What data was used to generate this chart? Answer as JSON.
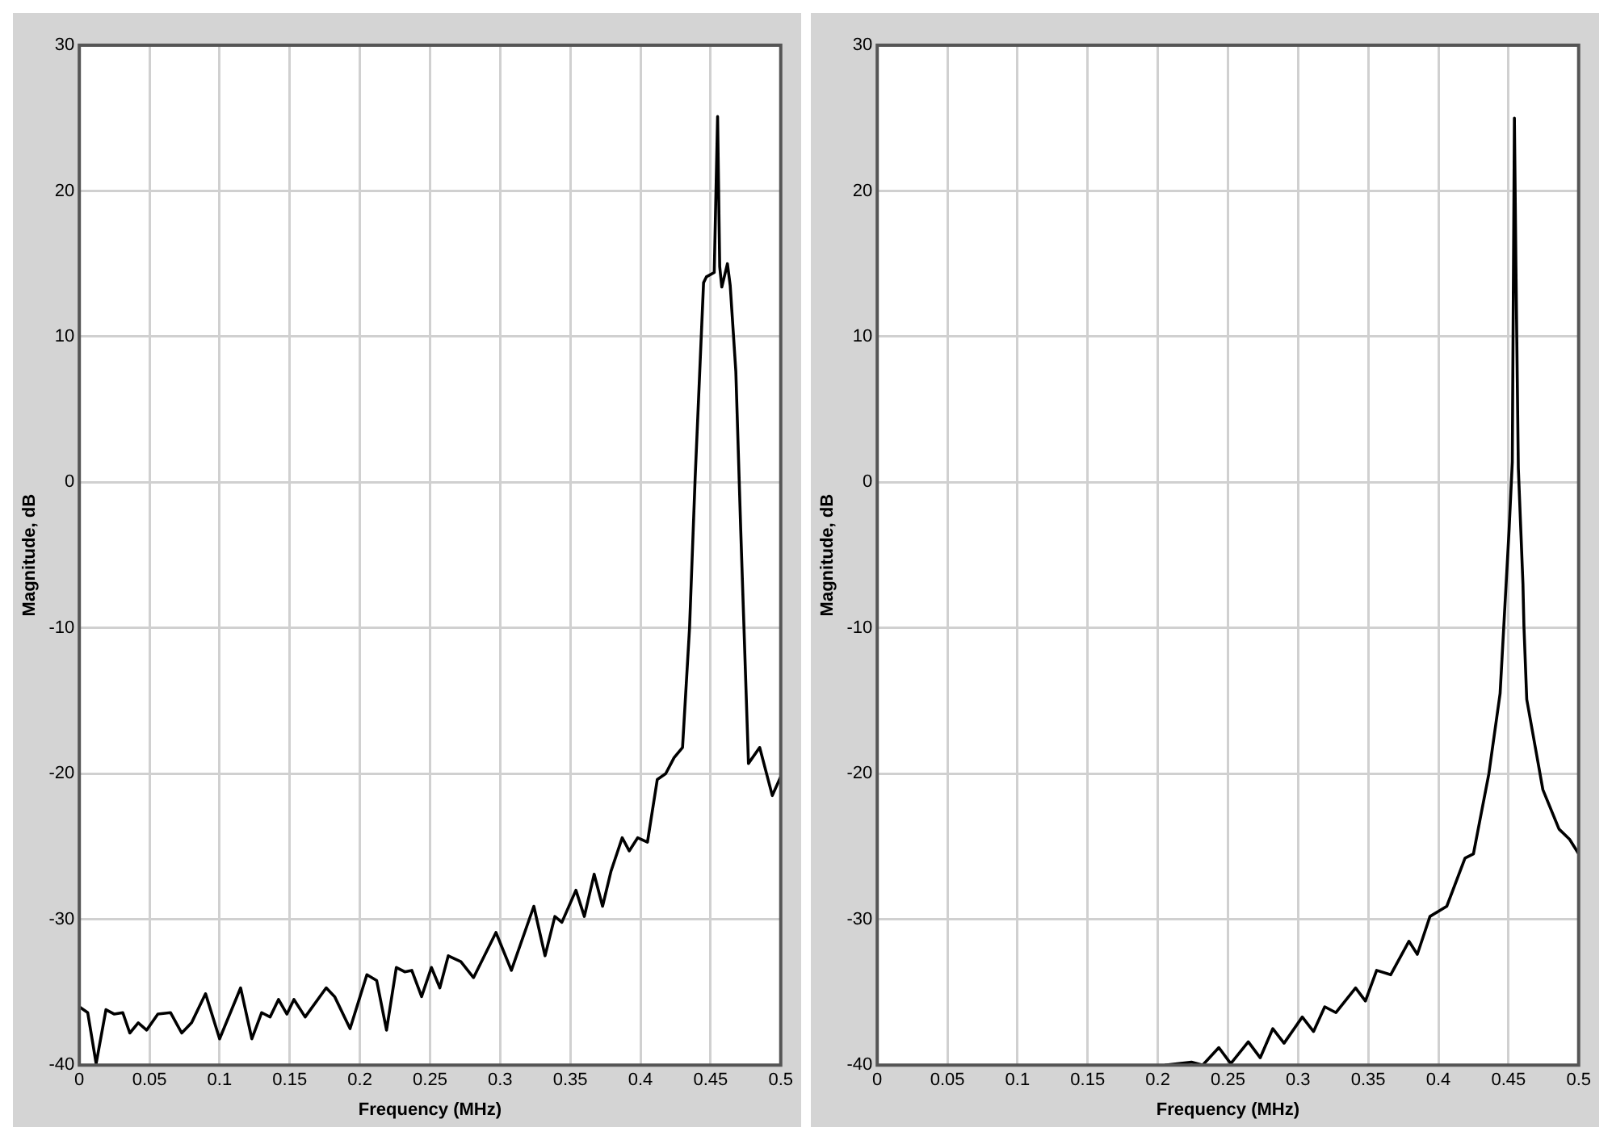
{
  "chart_data": [
    {
      "type": "line",
      "xlabel": "Frequency (MHz)",
      "ylabel": "Magnitude, dB",
      "xlim": [
        0,
        0.5
      ],
      "ylim": [
        -40,
        30
      ],
      "xticks": [
        0,
        0.05,
        0.1,
        0.15,
        0.2,
        0.25,
        0.3,
        0.35,
        0.4,
        0.45,
        0.5
      ],
      "yticks": [
        -40,
        -30,
        -20,
        -10,
        0,
        10,
        20,
        30
      ],
      "grid": true,
      "series": [
        {
          "color": "#000000",
          "x": [
            0,
            0.006,
            0.012,
            0.019,
            0.025,
            0.031,
            0.036,
            0.042,
            0.048,
            0.056,
            0.065,
            0.073,
            0.08,
            0.09,
            0.1,
            0.115,
            0.123,
            0.13,
            0.136,
            0.142,
            0.148,
            0.153,
            0.161,
            0.176,
            0.182,
            0.193,
            0.205,
            0.212,
            0.219,
            0.226,
            0.232,
            0.237,
            0.244,
            0.251,
            0.257,
            0.263,
            0.272,
            0.281,
            0.297,
            0.308,
            0.324,
            0.332,
            0.339,
            0.344,
            0.354,
            0.36,
            0.367,
            0.373,
            0.379,
            0.387,
            0.392,
            0.398,
            0.405,
            0.412,
            0.418,
            0.424,
            0.43,
            0.435,
            0.439,
            0.445,
            0.447,
            0.4526,
            0.455,
            0.4565,
            0.458,
            0.462,
            0.464,
            0.468,
            0.4715,
            0.477,
            0.485,
            0.494,
            0.5
          ],
          "values": [
            -36.0,
            -36.4,
            -39.9,
            -36.2,
            -36.5,
            -36.4,
            -37.8,
            -37.1,
            -37.6,
            -36.5,
            -36.4,
            -37.8,
            -37.1,
            -35.1,
            -38.2,
            -34.7,
            -38.2,
            -36.4,
            -36.7,
            -35.5,
            -36.5,
            -35.5,
            -36.7,
            -34.7,
            -35.3,
            -37.5,
            -33.8,
            -34.2,
            -37.6,
            -33.3,
            -33.6,
            -33.5,
            -35.3,
            -33.3,
            -34.7,
            -32.5,
            -32.9,
            -34.0,
            -30.9,
            -33.5,
            -29.1,
            -32.5,
            -29.8,
            -30.2,
            -28.0,
            -29.8,
            -26.9,
            -29.1,
            -26.7,
            -24.4,
            -25.3,
            -24.4,
            -24.7,
            -20.4,
            -20.0,
            -18.9,
            -18.2,
            -10.0,
            0.3,
            13.7,
            14.1,
            14.4,
            25.1,
            14.8,
            13.4,
            15.0,
            13.5,
            7.6,
            -3.3,
            -19.3,
            -18.2,
            -21.5,
            -20.2
          ]
        }
      ]
    },
    {
      "type": "line",
      "xlabel": "Frequency (MHz)",
      "ylabel": "Magnitude, dB",
      "xlim": [
        0,
        0.5
      ],
      "ylim": [
        -40,
        30
      ],
      "xticks": [
        0,
        0.05,
        0.1,
        0.15,
        0.2,
        0.25,
        0.3,
        0.35,
        0.4,
        0.45,
        0.5
      ],
      "yticks": [
        -40,
        -30,
        -20,
        -10,
        0,
        10,
        20,
        30
      ],
      "grid": true,
      "series": [
        {
          "color": "#000000",
          "x": [
            0.205,
            0.224,
            0.232,
            0.2435,
            0.252,
            0.2645,
            0.273,
            0.282,
            0.29,
            0.303,
            0.311,
            0.319,
            0.327,
            0.341,
            0.348,
            0.356,
            0.366,
            0.379,
            0.385,
            0.394,
            0.406,
            0.419,
            0.425,
            0.436,
            0.444,
            0.4504,
            0.4527,
            0.4542,
            0.4553,
            0.457,
            0.4603,
            0.461,
            0.463,
            0.4745,
            0.486,
            0.4935,
            0.5
          ],
          "values": [
            -40.0,
            -39.8,
            -40.0,
            -38.8,
            -39.9,
            -38.4,
            -39.5,
            -37.5,
            -38.5,
            -36.7,
            -37.7,
            -36.0,
            -36.4,
            -34.7,
            -35.6,
            -33.5,
            -33.8,
            -31.5,
            -32.4,
            -29.8,
            -29.1,
            -25.8,
            -25.5,
            -20.0,
            -14.5,
            -3.3,
            1.4,
            25.0,
            14.8,
            1.0,
            -7.0,
            -9.9,
            -14.9,
            -21.1,
            -23.8,
            -24.5,
            -25.5
          ]
        }
      ]
    }
  ]
}
